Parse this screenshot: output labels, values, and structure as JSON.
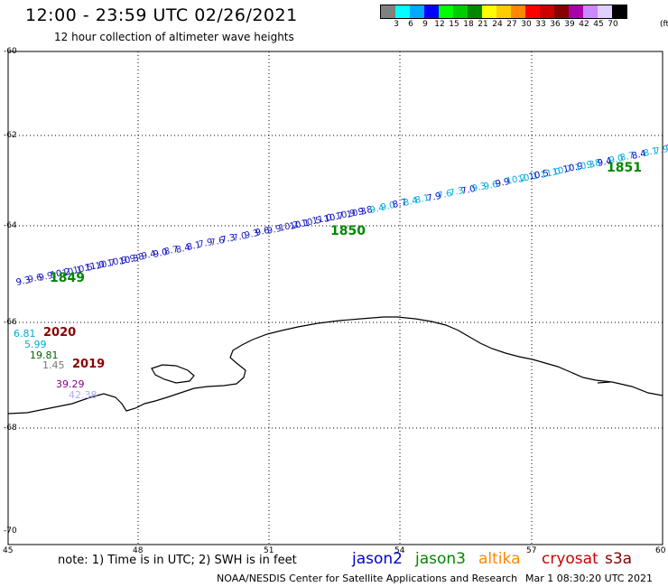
{
  "header": {
    "title": "12:00 - 23:59 UTC 02/26/2021",
    "subtitle": "12 hour collection of altimeter wave heights"
  },
  "color_scale": {
    "colors": [
      "#808080",
      "#00ffff",
      "#00aaff",
      "#0000ff",
      "#00ff00",
      "#00cc00",
      "#008800",
      "#ffff00",
      "#ffcc00",
      "#ff8800",
      "#ff0000",
      "#cc0000",
      "#880000",
      "#aa00aa",
      "#cc88ff",
      "#e0d0ff",
      "#000000"
    ],
    "labels": [
      "3",
      "6",
      "9",
      "12",
      "15",
      "18",
      "21",
      "24",
      "27",
      "30",
      "33",
      "36",
      "39",
      "42",
      "45",
      "70"
    ],
    "unit": "(ft)"
  },
  "axes": {
    "lat_labels": [
      "-60",
      "-62",
      "-64",
      "-66",
      "-68",
      "-70"
    ],
    "lon_labels": [
      "45",
      "48",
      "51",
      "54",
      "57",
      "60"
    ]
  },
  "track": {
    "times": [
      "1849",
      "1850",
      "1851"
    ],
    "values": [
      "9.3",
      "9.6",
      "9.9",
      "10.2",
      "10.1",
      "10.5",
      "11.0",
      "10.7",
      "10.9",
      "10.3",
      "9.8",
      "9.4",
      "9.0",
      "8.7",
      "8.4",
      "8.1",
      "7.9",
      "7.6",
      "7.3",
      "7.0"
    ]
  },
  "inset": {
    "year_2020": "2020",
    "year_2019": "2019",
    "values": [
      "6.81",
      "5.99",
      "19.81",
      "1.45",
      "39.29",
      "42.38"
    ],
    "colors": [
      "#00aacc",
      "#00aacc",
      "#006600",
      "#777777",
      "#880088",
      "#aaaaff"
    ]
  },
  "footer": {
    "note": "note:  1) Time is in UTC;  2) SWH is in feet",
    "legend": [
      {
        "label": "jason2",
        "color": "#0000cc"
      },
      {
        "label": "jason3",
        "color": "#008800"
      },
      {
        "label": "altika",
        "color": "#ff8800"
      },
      {
        "label": "cryosat",
        "color": "#cc0000"
      },
      {
        "label": "s3a",
        "color": "#880000"
      }
    ],
    "credit": "NOAA/NESDIS Center for Satellite Applications and Research",
    "timestamp": "Mar  1 08:30:20 UTC 2021"
  }
}
